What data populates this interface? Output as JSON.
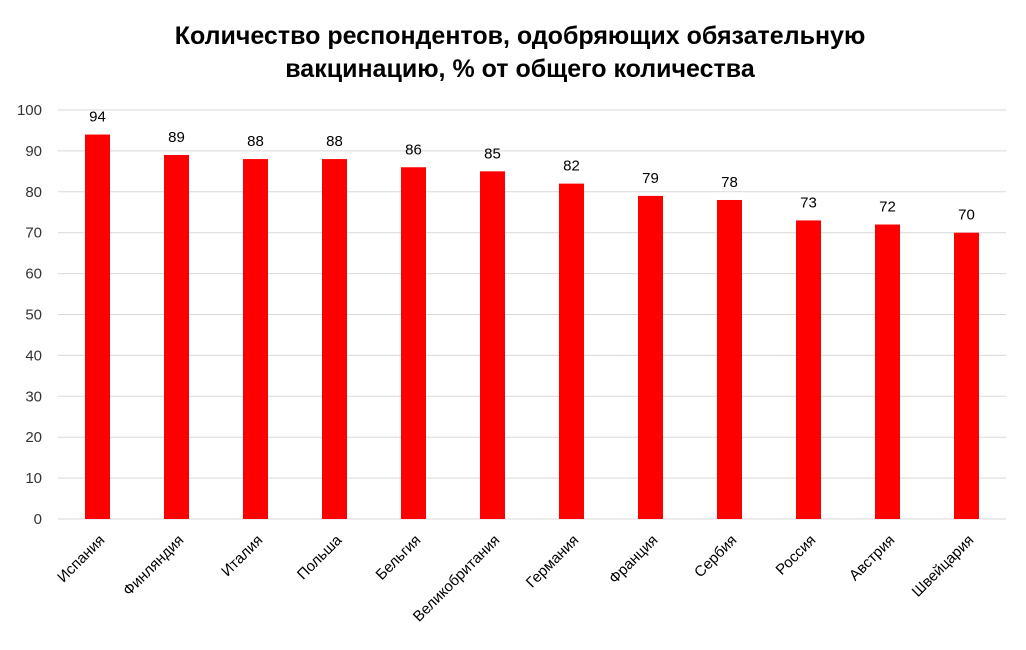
{
  "chart_data": {
    "type": "bar",
    "title_lines": [
      "Количество респондентов, одобряющих обязательную",
      "вакцинацию, % от общего количества"
    ],
    "title": "Количество респондентов, одобряющих обязательную вакцинацию, % от общего количества",
    "categories": [
      "Испания",
      "Финляндия",
      "Италия",
      "Польша",
      "Бельгия",
      "Великобритания",
      "Германия",
      "Франция",
      "Сербия",
      "Россия",
      "Австрия",
      "Швейцария"
    ],
    "values": [
      94,
      89,
      88,
      88,
      86,
      85,
      82,
      79,
      78,
      73,
      72,
      70
    ],
    "xlabel": "",
    "ylabel": "",
    "ylim": [
      0,
      100
    ],
    "yticks": [
      0,
      10,
      20,
      30,
      40,
      50,
      60,
      70,
      80,
      90,
      100
    ],
    "grid": true,
    "legend": "none",
    "bar_color": "#ff0000",
    "data_labels": true
  }
}
